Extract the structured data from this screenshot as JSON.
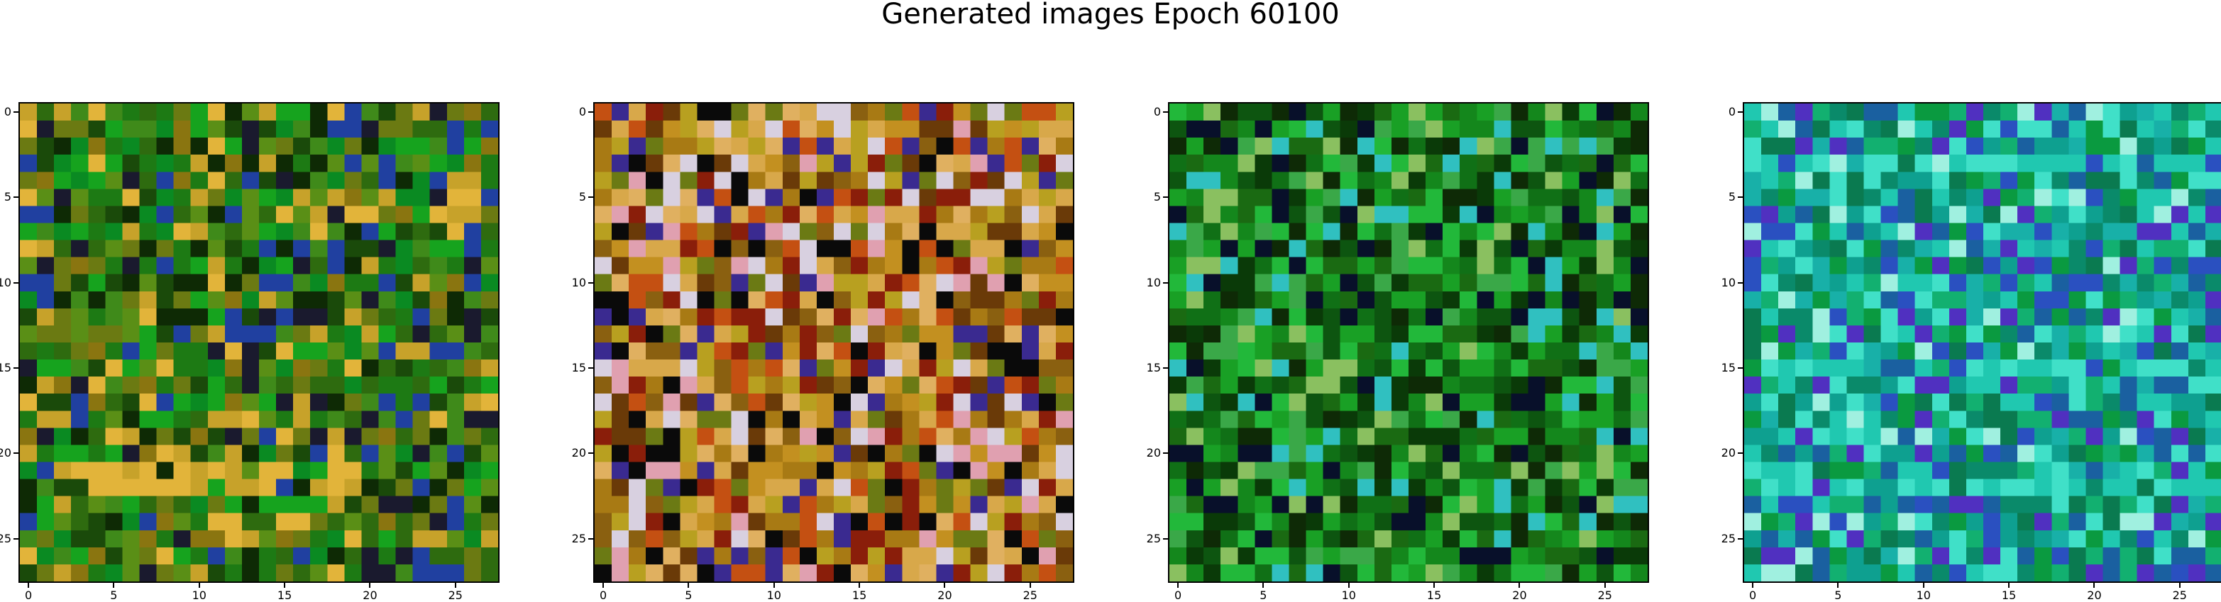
{
  "figure": {
    "title": "Generated images Epoch 60100"
  },
  "chart_data": [
    {
      "type": "heatmap",
      "grid_size": 28,
      "xlim": [
        0,
        27
      ],
      "ylim": [
        27,
        0
      ],
      "xticks": [
        "0",
        "5",
        "10",
        "15",
        "20",
        "25"
      ],
      "yticks": [
        "0",
        "5",
        "10",
        "15",
        "20",
        "25"
      ],
      "palette": [
        "#0e2a05",
        "#1a4a0a",
        "#2e6b0f",
        "#1d7a14",
        "#3f8a1a",
        "#5a8f16",
        "#6b7a12",
        "#8a7510",
        "#0a8a22",
        "#16a31e",
        "#c7a22a",
        "#e2b43a",
        "#1a1a2e",
        "#2040a0"
      ],
      "dominant": "green/olive noise with warm band at rows 21-23"
    },
    {
      "type": "heatmap",
      "grid_size": 28,
      "xlim": [
        0,
        27
      ],
      "ylim": [
        27,
        0
      ],
      "xticks": [
        "0",
        "5",
        "10",
        "15",
        "20",
        "25"
      ],
      "yticks": [
        "0",
        "5",
        "10",
        "15",
        "20",
        "25"
      ],
      "palette": [
        "#8a6010",
        "#a87a14",
        "#c39020",
        "#b8a020",
        "#d8a84a",
        "#e0b060",
        "#6a3a08",
        "#8a1e0a",
        "#c45012",
        "#6b7a14",
        "#e0a0b0",
        "#3a2a90",
        "#d8d0e0",
        "#0a0a0a"
      ],
      "dominant": "golden/brown noise"
    },
    {
      "type": "heatmap",
      "grid_size": 28,
      "xlim": [
        0,
        27
      ],
      "ylim": [
        27,
        0
      ],
      "xticks": [
        "0",
        "5",
        "10",
        "15",
        "20",
        "25"
      ],
      "yticks": [
        "0",
        "5",
        "10",
        "15",
        "20",
        "25"
      ],
      "palette": [
        "#0a3a08",
        "#0d5510",
        "#107016",
        "#14871c",
        "#19a025",
        "#22b83a",
        "#1a6a12",
        "#3aa848",
        "#0e2a06",
        "#08102a",
        "#30c0c0",
        "#8ac060"
      ],
      "dominant": "green noise"
    },
    {
      "type": "heatmap",
      "grid_size": 28,
      "xlim": [
        0,
        27
      ],
      "ylim": [
        27,
        0
      ],
      "xticks": [
        "0",
        "5",
        "10",
        "15",
        "20",
        "25"
      ],
      "yticks": [
        "0",
        "5",
        "10",
        "15",
        "20",
        "25"
      ],
      "palette": [
        "#0a8a6a",
        "#0ea090",
        "#18b0a8",
        "#20c8b0",
        "#40e0c8",
        "#0a7a50",
        "#1a60a0",
        "#2a50c0",
        "#0a9a40",
        "#12b070",
        "#5030c0",
        "#a0f0e0"
      ],
      "dominant": "teal/cyan noise with light bands at rows 3, 10, 15, 22"
    }
  ]
}
